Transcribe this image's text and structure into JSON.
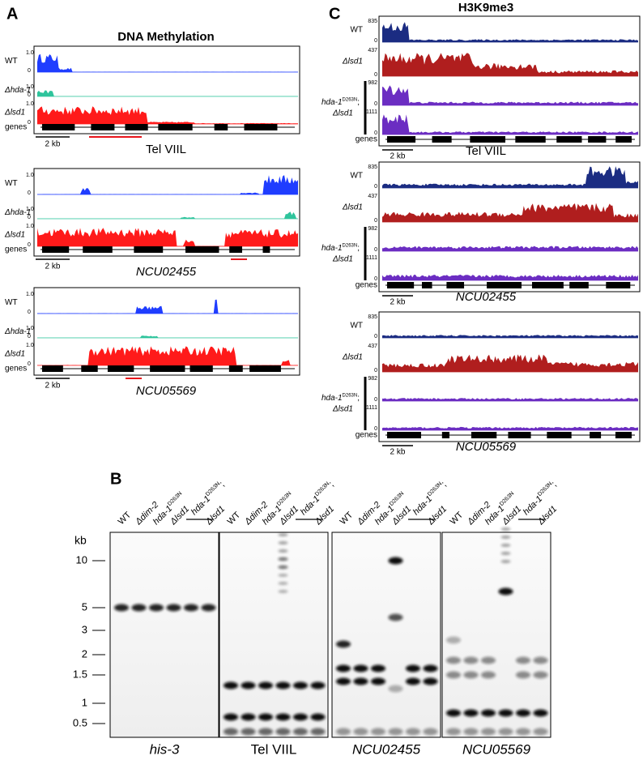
{
  "panel_a": {
    "label": "A",
    "title": "DNA Methylation",
    "tracks": [
      {
        "name": "WT",
        "max": "1.0",
        "min": "0"
      },
      {
        "name": "Δhda-1",
        "max": "1.0",
        "min": "0"
      },
      {
        "name": "Δlsd1",
        "max": "1.0",
        "min": "0"
      }
    ],
    "genes_label": "genes",
    "scale_bar": "2 kb",
    "regions": [
      "Tel VIIL",
      "NCU02455",
      "NCU05569"
    ]
  },
  "panel_c": {
    "label": "C",
    "title": "H3K9me3",
    "tracks": [
      {
        "name": "WT",
        "max": "835",
        "min": "0"
      },
      {
        "name": "Δlsd1",
        "max": "437",
        "min": "0"
      },
      {
        "max": "982",
        "min": "0"
      },
      {
        "max": "1111",
        "min": "0"
      }
    ],
    "double_mutant": {
      "gene": "hda-1",
      "allele": "D263N",
      "sep": ";",
      "second": "Δlsd1"
    },
    "genes_label": "genes",
    "scale_bar": "2 kb",
    "regions": [
      "Tel VIIL",
      "NCU02455",
      "NCU05569"
    ]
  },
  "panel_b": {
    "label": "B",
    "lanes": [
      {
        "text": "WT"
      },
      {
        "text": "Δdim-2"
      },
      {
        "text": "hda-1",
        "sup": "D263N"
      },
      {
        "text": "Δlsd1"
      },
      {
        "text": "hda-1",
        "sup": "D263N",
        "sep": ";",
        "second": "Δlsd1"
      }
    ],
    "size_unit": "kb",
    "sizes": [
      "10",
      "5",
      "3",
      "2",
      "1.5",
      "1",
      "0.5"
    ],
    "probes": [
      "his-3",
      "Tel VIIL",
      "NCU02455",
      "NCU05569"
    ]
  }
}
